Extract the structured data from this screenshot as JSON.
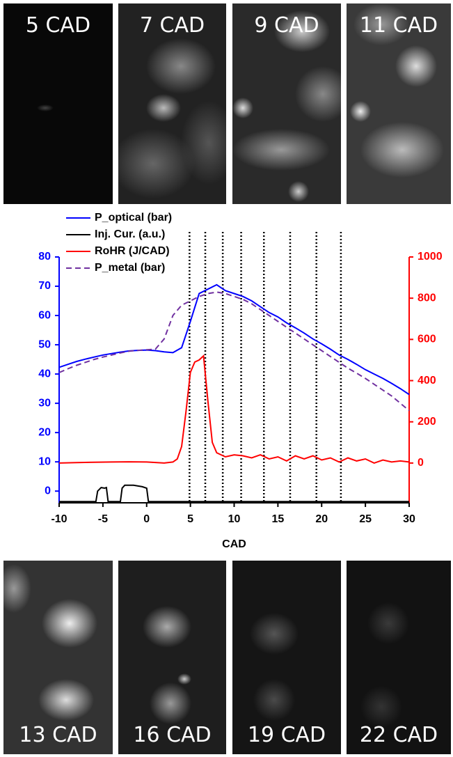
{
  "panels_top": [
    "5 CAD",
    "7 CAD",
    "9 CAD",
    "11 CAD"
  ],
  "panels_bottom": [
    "13 CAD",
    "16 CAD",
    "19 CAD",
    "22 CAD"
  ],
  "chart_data": {
    "type": "line",
    "x_label": "CAD",
    "xlim": [
      -10,
      30
    ],
    "xticks": [
      -10,
      -5,
      0,
      5,
      10,
      15,
      20,
      25,
      30
    ],
    "ylim": [
      -4,
      80
    ],
    "yticks": [
      0,
      10,
      20,
      30,
      40,
      50,
      60,
      70,
      80
    ],
    "y_color": "#0000ff",
    "y2lim": [
      -193,
      1000
    ],
    "y2ticks": [
      0,
      200,
      400,
      600,
      800,
      1000
    ],
    "y2_color": "#ff0000",
    "markers": [
      4.9,
      6.7,
      8.7,
      10.8,
      13.4,
      16.4,
      19.4,
      22.2
    ],
    "series": [
      {
        "name": "P_optical (bar)",
        "color": "#0000ff",
        "axis": "y",
        "x": [
          -10,
          -9,
          -8,
          -7,
          -6,
          -5,
          -4,
          -3,
          -2,
          -1,
          0,
          1,
          2,
          3,
          4,
          5,
          6,
          7,
          8,
          9,
          10,
          11,
          12,
          13,
          14,
          15,
          16,
          17,
          18,
          19,
          20,
          21,
          22,
          23,
          24,
          25,
          26,
          27,
          28,
          29,
          30
        ],
        "values": [
          42.3,
          43.3,
          44.3,
          45.1,
          45.8,
          46.5,
          47,
          47.5,
          47.9,
          48.1,
          48.2,
          48,
          47.6,
          47.3,
          49,
          58,
          67.5,
          69,
          70.5,
          68.5,
          67.5,
          66.5,
          65,
          63,
          61,
          59.5,
          57.5,
          55.8,
          54,
          52,
          50.3,
          48.5,
          46.5,
          45,
          43.3,
          41.5,
          40,
          38.5,
          36.8,
          35,
          33
        ]
      },
      {
        "name": "Inj. Cur. (a.u.)",
        "color": "#000000",
        "axis": "y",
        "x": [
          -10,
          -5.8,
          -5.6,
          -5.2,
          -4.8,
          -4.6,
          -4.4,
          -3,
          -2.8,
          -2.5,
          -1.5,
          -0.5,
          0,
          0.2,
          0.4,
          30
        ],
        "values": [
          -3.6,
          -3.6,
          0,
          1.2,
          1,
          1.2,
          -3.6,
          -3.6,
          1,
          2,
          2,
          1.5,
          1,
          -3.6,
          -3.6,
          -3.6
        ]
      },
      {
        "name": "RoHR (J/CAD)",
        "color": "#ff0000",
        "axis": "y2",
        "x": [
          -10,
          -8,
          -6,
          -4,
          -2,
          0,
          2,
          3,
          3.5,
          4,
          4.5,
          5,
          5.5,
          6,
          6.5,
          7,
          7.5,
          8,
          9,
          10,
          11,
          12,
          13,
          14,
          15,
          16,
          17,
          18,
          19,
          20,
          21,
          22,
          23,
          24,
          25,
          26,
          27,
          28,
          29,
          30
        ],
        "values": [
          0,
          2,
          4,
          5,
          6,
          5,
          0,
          5,
          20,
          80,
          250,
          440,
          490,
          500,
          520,
          300,
          100,
          50,
          30,
          40,
          35,
          25,
          40,
          20,
          30,
          10,
          35,
          20,
          35,
          15,
          25,
          5,
          25,
          10,
          20,
          0,
          15,
          5,
          10,
          5
        ]
      },
      {
        "name": "P_metal (bar)",
        "color": "#7030a0",
        "axis": "y",
        "dashed": true,
        "x": [
          -10,
          -9,
          -8,
          -7,
          -6,
          -5,
          -4,
          -3,
          -2,
          -1,
          0,
          1,
          2,
          3,
          4,
          5,
          6,
          7,
          8,
          9,
          10,
          11,
          12,
          13,
          14,
          15,
          16,
          17,
          18,
          19,
          20,
          21,
          22,
          23,
          24,
          25,
          26,
          27,
          28,
          29,
          30
        ],
        "values": [
          40.5,
          41.8,
          43,
          44,
          45,
          45.8,
          46.5,
          47.2,
          47.8,
          48.1,
          48.3,
          48.5,
          52,
          60,
          63.5,
          65,
          66.5,
          67.5,
          68,
          67.5,
          66.5,
          65.5,
          64,
          62,
          60,
          58,
          56,
          54,
          52,
          50,
          48,
          46,
          44,
          42,
          40.3,
          38.5,
          36.5,
          34.5,
          32.5,
          30,
          27.5
        ]
      }
    ]
  }
}
